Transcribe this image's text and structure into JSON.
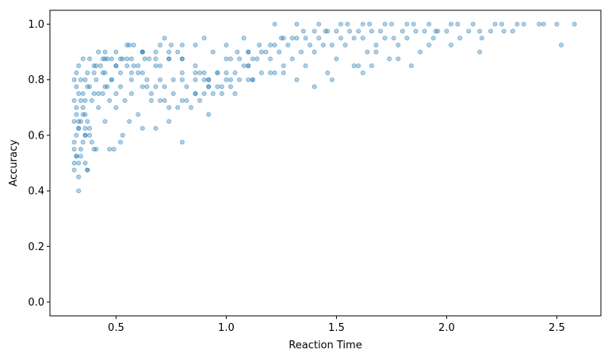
{
  "chart_data": {
    "type": "scatter",
    "title": "",
    "xlabel": "Reaction Time",
    "ylabel": "Accuracy",
    "xlim": [
      0.2,
      2.7
    ],
    "ylim": [
      -0.05,
      1.05
    ],
    "xticks": [
      0.5,
      1.0,
      1.5,
      2.0,
      2.5
    ],
    "xtick_labels": [
      "0.5",
      "1.0",
      "1.5",
      "2.0",
      "2.5"
    ],
    "yticks": [
      0.0,
      0.2,
      0.4,
      0.6,
      0.8,
      1.0
    ],
    "ytick_labels": [
      "0.0",
      "0.2",
      "0.4",
      "0.6",
      "0.8",
      "1.0"
    ],
    "grid": false,
    "legend": "none",
    "marker": {
      "color": "#1f77b4",
      "alpha": 0.35,
      "shape": "circle"
    },
    "series": [
      {
        "x": [
          0.31,
          0.31,
          0.32,
          0.32,
          0.33,
          0.33,
          0.34,
          0.35,
          0.36,
          0.31,
          0.33,
          0.34,
          0.36,
          0.37,
          0.38,
          0.39,
          0.4,
          0.41,
          0.32,
          0.33,
          0.35,
          0.36,
          0.38,
          0.31,
          0.31,
          0.32,
          0.33,
          0.34,
          0.36,
          0.37,
          0.32,
          0.34,
          0.35,
          0.36,
          0.39,
          0.42,
          0.45,
          0.47,
          0.49,
          0.31,
          0.33,
          0.36,
          0.4,
          0.44,
          0.47,
          0.5,
          0.53,
          0.32,
          0.35,
          0.38,
          0.42,
          0.46,
          0.5,
          0.54,
          0.56,
          0.31,
          0.34,
          0.37,
          0.41,
          0.45,
          0.48,
          0.52,
          0.57,
          0.6,
          0.32,
          0.36,
          0.4,
          0.44,
          0.48,
          0.52,
          0.57,
          0.62,
          0.66,
          0.33,
          0.37,
          0.41,
          0.45,
          0.5,
          0.55,
          0.6,
          0.64,
          0.68,
          0.72,
          0.35,
          0.4,
          0.45,
          0.5,
          0.55,
          0.6,
          0.65,
          0.7,
          0.76,
          0.38,
          0.43,
          0.48,
          0.53,
          0.58,
          0.63,
          0.68,
          0.74,
          0.8,
          0.86,
          0.42,
          0.46,
          0.52,
          0.57,
          0.62,
          0.68,
          0.74,
          0.8,
          0.86,
          0.92,
          0.45,
          0.5,
          0.56,
          0.62,
          0.68,
          0.74,
          0.8,
          0.86,
          0.92,
          0.98,
          0.55,
          0.62,
          0.7,
          0.78,
          0.86,
          0.94,
          1.02,
          1.1,
          0.72,
          0.8,
          0.9,
          1.0,
          1.1,
          0.62,
          0.7,
          0.8,
          0.9,
          1.0,
          1.1,
          1.2,
          0.64,
          0.72,
          0.82,
          0.92,
          1.02,
          1.12,
          1.22,
          1.32,
          0.66,
          0.76,
          0.86,
          0.96,
          1.06,
          1.16,
          1.26,
          1.36,
          1.46,
          0.7,
          0.8,
          0.9,
          1.0,
          1.1,
          1.2,
          1.3,
          1.4,
          1.5,
          1.6,
          0.74,
          0.84,
          0.94,
          1.04,
          1.14,
          1.24,
          1.34,
          1.44,
          1.54,
          1.64,
          1.74,
          0.78,
          0.88,
          0.98,
          1.08,
          1.18,
          1.28,
          1.38,
          1.48,
          1.58,
          1.68,
          1.78,
          1.88,
          0.82,
          0.92,
          1.02,
          1.12,
          1.22,
          1.32,
          1.42,
          1.52,
          1.62,
          1.72,
          1.82,
          1.92,
          2.02,
          0.86,
          0.96,
          1.06,
          1.16,
          1.26,
          1.36,
          1.46,
          1.56,
          1.66,
          1.76,
          1.86,
          1.96,
          2.06,
          2.16,
          0.9,
          1.0,
          1.1,
          1.2,
          1.3,
          1.4,
          1.5,
          1.6,
          1.7,
          1.8,
          1.9,
          2.0,
          2.1,
          2.2,
          2.3,
          1.05,
          1.15,
          1.25,
          1.35,
          1.45,
          1.55,
          1.65,
          1.75,
          1.85,
          1.95,
          2.05,
          2.15,
          2.25,
          2.35,
          1.22,
          1.32,
          1.42,
          1.52,
          1.62,
          1.72,
          1.82,
          1.92,
          2.02,
          2.12,
          2.22,
          2.32,
          2.42,
          2.5,
          2.58,
          0.8,
          0.62,
          0.92,
          0.74,
          1.04,
          1.4,
          0.96,
          0.88,
          1.26,
          1.62,
          1.48,
          1.12,
          0.33,
          0.37,
          0.58,
          0.52,
          2.52,
          2.15,
          1.66,
          1.84,
          0.68,
          1.58,
          1.78,
          0.57,
          0.44,
          0.75,
          1.08,
          1.68,
          1.94,
          2.26,
          2.44
        ],
        "y": [
          0.55,
          0.575,
          0.525,
          0.6,
          0.5,
          0.625,
          0.55,
          0.575,
          0.6,
          0.65,
          0.625,
          0.65,
          0.625,
          0.65,
          0.6,
          0.575,
          0.55,
          0.55,
          0.675,
          0.65,
          0.675,
          0.6,
          0.625,
          0.475,
          0.5,
          0.525,
          0.45,
          0.525,
          0.5,
          0.475,
          0.7,
          0.725,
          0.7,
          0.675,
          0.725,
          0.7,
          0.65,
          0.55,
          0.55,
          0.725,
          0.75,
          0.725,
          0.75,
          0.75,
          0.725,
          0.7,
          0.6,
          0.775,
          0.75,
          0.775,
          0.75,
          0.775,
          0.75,
          0.725,
          0.65,
          0.8,
          0.8,
          0.775,
          0.8,
          0.775,
          0.8,
          0.775,
          0.75,
          0.675,
          0.825,
          0.8,
          0.825,
          0.825,
          0.8,
          0.825,
          0.8,
          0.775,
          0.725,
          0.85,
          0.825,
          0.85,
          0.825,
          0.85,
          0.85,
          0.825,
          0.8,
          0.775,
          0.725,
          0.875,
          0.85,
          0.875,
          0.85,
          0.875,
          0.85,
          0.875,
          0.85,
          0.8,
          0.875,
          0.85,
          0.875,
          0.875,
          0.85,
          0.875,
          0.85,
          0.875,
          0.825,
          0.8,
          0.9,
          0.875,
          0.875,
          0.875,
          0.9,
          0.875,
          0.875,
          0.875,
          0.825,
          0.775,
          0.9,
          0.9,
          0.925,
          0.9,
          0.9,
          0.9,
          0.875,
          0.85,
          0.8,
          0.75,
          0.925,
          0.9,
          0.925,
          0.9,
          0.925,
          0.9,
          0.875,
          0.85,
          0.95,
          0.925,
          0.95,
          0.925,
          0.9,
          0.825,
          0.8,
          0.8,
          0.825,
          0.825,
          0.8,
          0.825,
          0.775,
          0.775,
          0.775,
          0.8,
          0.775,
          0.8,
          0.825,
          0.8,
          0.75,
          0.75,
          0.75,
          0.775,
          0.8,
          0.825,
          0.85,
          0.85,
          0.825,
          0.725,
          0.725,
          0.75,
          0.8,
          0.85,
          0.875,
          0.875,
          0.9,
          0.875,
          0.85,
          0.7,
          0.7,
          0.75,
          0.825,
          0.875,
          0.9,
          0.9,
          0.925,
          0.925,
          0.9,
          0.875,
          0.7,
          0.725,
          0.775,
          0.85,
          0.9,
          0.925,
          0.925,
          0.925,
          0.95,
          0.925,
          0.925,
          0.9,
          0.725,
          0.775,
          0.8,
          0.875,
          0.925,
          0.95,
          0.95,
          0.95,
          0.95,
          0.95,
          0.95,
          0.925,
          0.925,
          0.75,
          0.825,
          0.875,
          0.9,
          0.95,
          0.95,
          0.975,
          0.975,
          0.975,
          0.95,
          0.975,
          0.975,
          0.95,
          0.95,
          0.8,
          0.875,
          0.9,
          0.925,
          0.95,
          0.975,
          0.975,
          0.975,
          0.975,
          0.975,
          0.975,
          0.975,
          0.975,
          0.975,
          0.975,
          0.9,
          0.925,
          0.95,
          0.975,
          0.975,
          1.0,
          1.0,
          1.0,
          1.0,
          0.975,
          1.0,
          0.975,
          1.0,
          1.0,
          1.0,
          1.0,
          1.0,
          1.0,
          1.0,
          1.0,
          1.0,
          1.0,
          1.0,
          1.0,
          1.0,
          1.0,
          1.0,
          1.0,
          1.0,
          0.575,
          0.625,
          0.675,
          0.65,
          0.75,
          0.775,
          0.825,
          0.825,
          0.825,
          0.825,
          0.8,
          0.8,
          0.4,
          0.475,
          0.925,
          0.575,
          0.925,
          0.9,
          0.85,
          0.85,
          0.625,
          0.85,
          0.875,
          0.825,
          0.875,
          0.925,
          0.95,
          0.9,
          0.95,
          0.975,
          1.0
        ]
      }
    ]
  }
}
